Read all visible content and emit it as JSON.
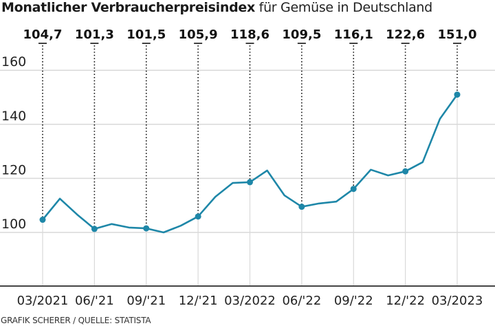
{
  "title": {
    "bold": "Monatlicher Verbraucherpreisindex",
    "regular": " für Gemüse in Deutschland"
  },
  "source": "GRAFIK SCHERER / QUELLE: STATISTA",
  "colors": {
    "line": "#1e87a8",
    "grid": "#d9d9d9",
    "axis": "#444444",
    "callout": "#111111"
  },
  "chart_data": {
    "type": "line",
    "title": "Monatlicher Verbraucherpreisindex für Gemüse in Deutschland",
    "xlabel": "",
    "ylabel": "",
    "ylim": [
      80,
      160
    ],
    "yticks": [
      100,
      120,
      140,
      160
    ],
    "grid": true,
    "x_tick_labels": [
      "03/2021",
      "06/'21",
      "09/'21",
      "12/'21",
      "03/2022",
      "06/'22",
      "09/'22",
      "12/'22",
      "03/2023"
    ],
    "x": [
      "03/2021",
      "04/2021",
      "05/2021",
      "06/2021",
      "07/2021",
      "08/2021",
      "09/2021",
      "10/2021",
      "11/2021",
      "12/2021",
      "01/2022",
      "02/2022",
      "03/2022",
      "04/2022",
      "05/2022",
      "06/2022",
      "07/2022",
      "08/2022",
      "09/2022",
      "10/2022",
      "11/2022",
      "12/2022",
      "01/2023",
      "02/2023",
      "03/2023"
    ],
    "series": [
      {
        "name": "Verbraucherpreisindex Gemüse",
        "values": [
          104.7,
          112.5,
          106.6,
          101.3,
          103.1,
          101.8,
          101.5,
          100.0,
          102.5,
          105.9,
          113.2,
          118.3,
          118.6,
          122.9,
          113.7,
          109.5,
          110.7,
          111.4,
          116.1,
          123.2,
          121.1,
          122.6,
          126.0,
          142.0,
          151.0
        ]
      }
    ],
    "annotations": [
      {
        "x": "03/2021",
        "label": "104,7"
      },
      {
        "x": "06/2021",
        "label": "101,3"
      },
      {
        "x": "09/2021",
        "label": "101,5"
      },
      {
        "x": "12/2021",
        "label": "105,9"
      },
      {
        "x": "03/2022",
        "label": "118,6"
      },
      {
        "x": "06/2022",
        "label": "109,5"
      },
      {
        "x": "09/2022",
        "label": "116,1"
      },
      {
        "x": "12/2022",
        "label": "122,6"
      },
      {
        "x": "03/2023",
        "label": "151,0"
      }
    ]
  }
}
